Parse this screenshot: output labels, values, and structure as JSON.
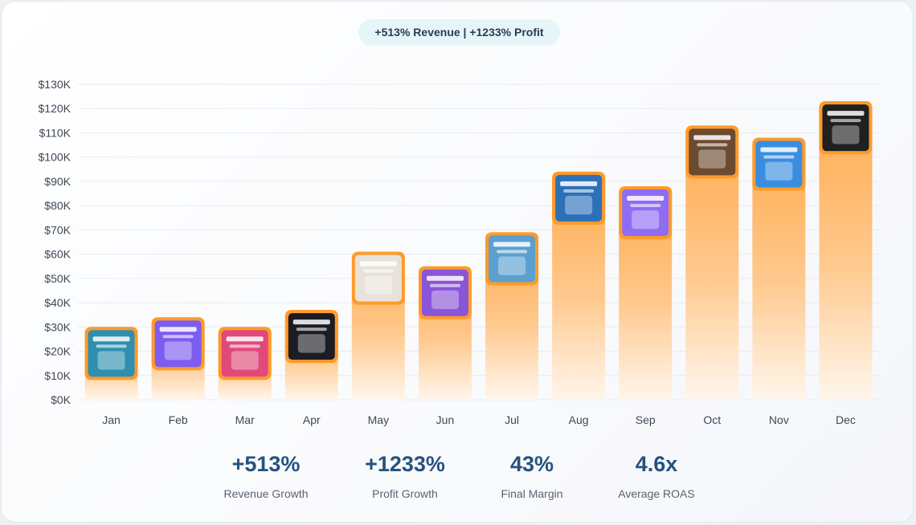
{
  "header": {
    "badge": "+513% Revenue | +1233% Profit"
  },
  "chart_data": {
    "type": "bar",
    "categories": [
      "Jan",
      "Feb",
      "Mar",
      "Apr",
      "May",
      "Jun",
      "Jul",
      "Aug",
      "Sep",
      "Oct",
      "Nov",
      "Dec"
    ],
    "series": [
      {
        "values": [
          30000,
          34000,
          30000,
          37000,
          61000,
          55000,
          69000,
          94000,
          88000,
          113000,
          108000,
          123000
        ]
      }
    ],
    "ylim": [
      0,
      130000
    ],
    "yticks": [
      0,
      10000,
      20000,
      30000,
      40000,
      50000,
      60000,
      70000,
      80000,
      90000,
      100000,
      110000,
      120000,
      130000
    ],
    "ytick_labels": [
      "$0K",
      "$10K",
      "$20K",
      "$30K",
      "$40K",
      "$50K",
      "$60K",
      "$70K",
      "$80K",
      "$90K",
      "$100K",
      "$110K",
      "$120K",
      "$130K"
    ],
    "grid": true,
    "thumbnail_colors": [
      "#2f8fb0",
      "#7d5cf0",
      "#e04a7a",
      "#1c1c24",
      "#e8e2da",
      "#8a55d8",
      "#5aa0d0",
      "#2d70b8",
      "#8f6cf4",
      "#6b4a30",
      "#3a8ee0",
      "#202020"
    ],
    "colors": {
      "bar_top": "#ffaa4c",
      "bar_bottom": "#fff6ec",
      "border": "#ff9a2a"
    }
  },
  "stats": [
    {
      "value": "+513%",
      "label": "Revenue Growth"
    },
    {
      "value": "+1233%",
      "label": "Profit Growth"
    },
    {
      "value": "43%",
      "label": "Final Margin"
    },
    {
      "value": "4.6x",
      "label": "Average ROAS"
    }
  ]
}
